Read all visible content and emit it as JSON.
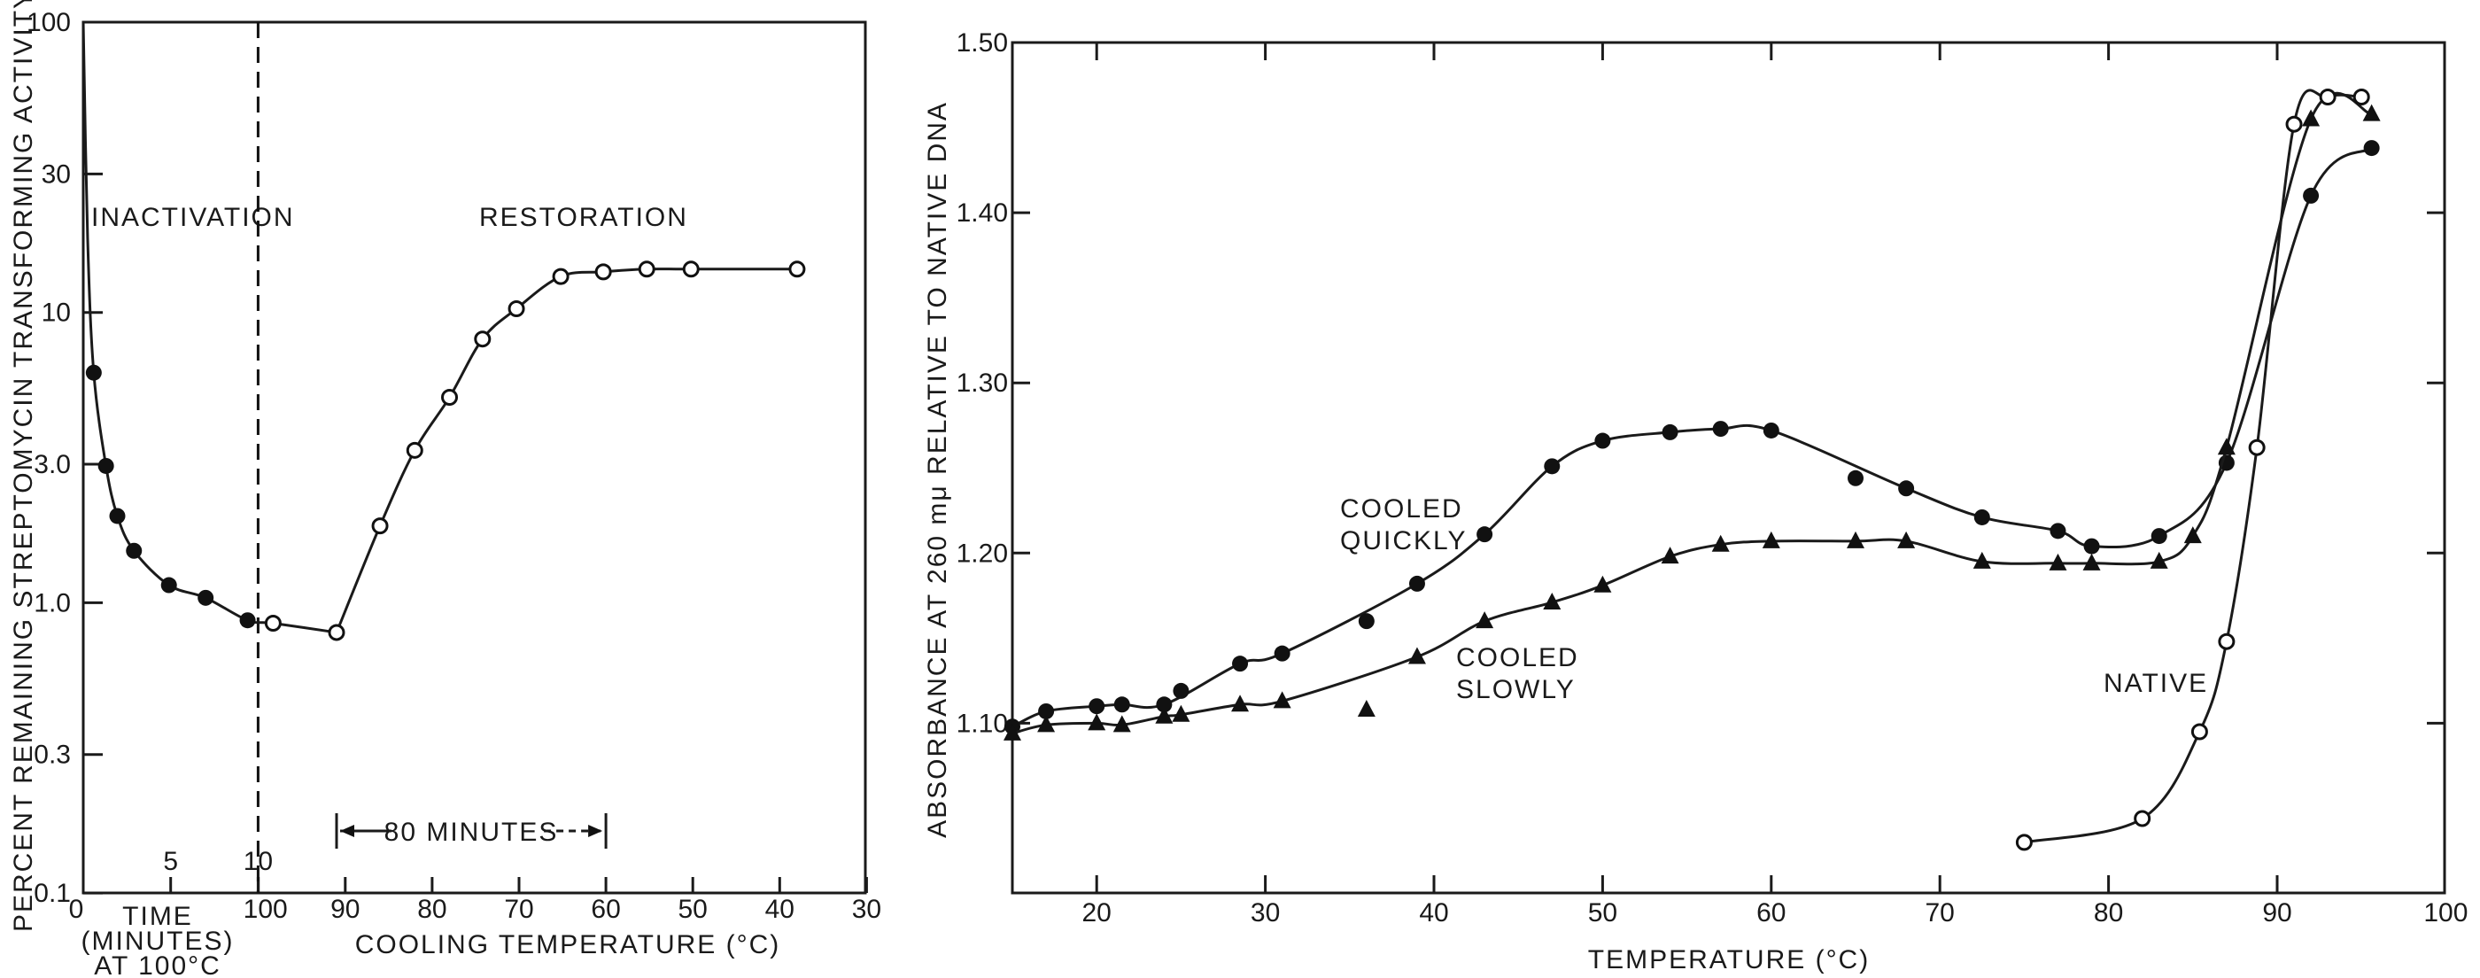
{
  "chart_data": [
    {
      "type": "scatter",
      "yscale": "log",
      "ylim": [
        0.1,
        100
      ],
      "ylabel": "PERCENT REMAINING STREPTOMYCIN TRANSFORMING ACTIVITY",
      "yticks": [
        "100",
        "30",
        "10",
        "3.0",
        "1.0",
        "0.3",
        "0.1"
      ],
      "ytick_values": [
        100,
        30,
        10,
        3,
        1,
        0.3,
        0.1
      ],
      "x_time": {
        "label_lines": [
          "TIME",
          "(MINUTES)",
          "AT 100°C"
        ],
        "range": [
          0,
          10
        ],
        "ticks": [
          "0",
          "5",
          "10"
        ],
        "tick_values": [
          0,
          5,
          10
        ]
      },
      "x_temp": {
        "label": "COOLING TEMPERATURE (°C)",
        "range": [
          100,
          30
        ],
        "ticks": [
          "100",
          "90",
          "80",
          "70",
          "60",
          "50",
          "40",
          "30"
        ],
        "tick_values": [
          100,
          90,
          80,
          70,
          60,
          50,
          40,
          30
        ]
      },
      "annotations": {
        "inactivation": "INACTIVATION",
        "restoration": "RESTORATION",
        "duration": "80 MINUTES",
        "duration_range_c": [
          91,
          60
        ]
      },
      "divider_at": "10 min / 100°C",
      "series": [
        {
          "marker": "filled-circle",
          "x_unit": "minutes",
          "x": [
            0.6,
            1.3,
            1.95,
            2.9,
            4.9,
            7.0,
            9.4
          ],
          "y": [
            6.2,
            2.96,
            1.99,
            1.51,
            1.15,
            1.04,
            0.87
          ]
        },
        {
          "marker": "open-circle",
          "x_unit": "°C",
          "x": [
            98.3,
            91,
            86,
            82,
            78,
            74.2,
            70.3,
            65.2,
            60.3,
            55.3,
            50.2,
            38
          ],
          "y": [
            0.85,
            0.79,
            1.84,
            3.35,
            5.1,
            8.1,
            10.3,
            13.3,
            13.8,
            14.1,
            14.1,
            14.1
          ]
        }
      ]
    },
    {
      "type": "scatter",
      "xlabel": "TEMPERATURE (°C)",
      "ylabel": "ABSORBANCE AT 260 mμ RELATIVE TO NATIVE DNA",
      "xlim": [
        15,
        100
      ],
      "ylim": [
        1.0,
        1.5
      ],
      "xticks": [
        "20",
        "30",
        "40",
        "50",
        "60",
        "70",
        "80",
        "90",
        "100"
      ],
      "xtick_values": [
        20,
        30,
        40,
        50,
        60,
        70,
        80,
        90,
        100
      ],
      "yticks": [
        "1.10",
        "1.20",
        "1.30",
        "1.40",
        "1.50"
      ],
      "ytick_values": [
        1.1,
        1.2,
        1.3,
        1.4,
        1.5
      ],
      "series": [
        {
          "name": "COOLED QUICKLY",
          "marker": "filled-circle",
          "x": [
            15,
            17,
            20,
            21.5,
            24,
            25,
            28.5,
            31,
            36,
            39,
            43,
            47,
            50,
            54,
            57,
            60,
            65,
            68,
            72.5,
            77,
            79,
            83,
            87,
            92,
            95.6
          ],
          "y": [
            1.098,
            1.107,
            1.11,
            1.111,
            1.111,
            1.119,
            1.135,
            1.141,
            1.16,
            1.182,
            1.211,
            1.251,
            1.266,
            1.271,
            1.273,
            1.272,
            1.244,
            1.238,
            1.221,
            1.213,
            1.204,
            1.21,
            1.253,
            1.41,
            1.438
          ]
        },
        {
          "name": "COOLED SLOWLY",
          "marker": "filled-triangle",
          "x": [
            15,
            17,
            20,
            21.5,
            24,
            25,
            28.5,
            31,
            36,
            39,
            43,
            47,
            50,
            54,
            57,
            60,
            65,
            68,
            72.5,
            77,
            79,
            83,
            85,
            87,
            92,
            95.6
          ],
          "y": [
            1.094,
            1.099,
            1.1,
            1.099,
            1.104,
            1.105,
            1.111,
            1.113,
            1.108,
            1.139,
            1.16,
            1.171,
            1.181,
            1.198,
            1.205,
            1.207,
            1.207,
            1.207,
            1.195,
            1.194,
            1.194,
            1.195,
            1.21,
            1.262,
            1.455,
            1.458
          ]
        },
        {
          "name": "NATIVE",
          "marker": "open-circle",
          "x": [
            75,
            82,
            85.4,
            87,
            88.8,
            91,
            93,
            95
          ],
          "y": [
            1.03,
            1.044,
            1.095,
            1.148,
            1.262,
            1.452,
            1.468,
            1.468
          ]
        }
      ]
    }
  ]
}
